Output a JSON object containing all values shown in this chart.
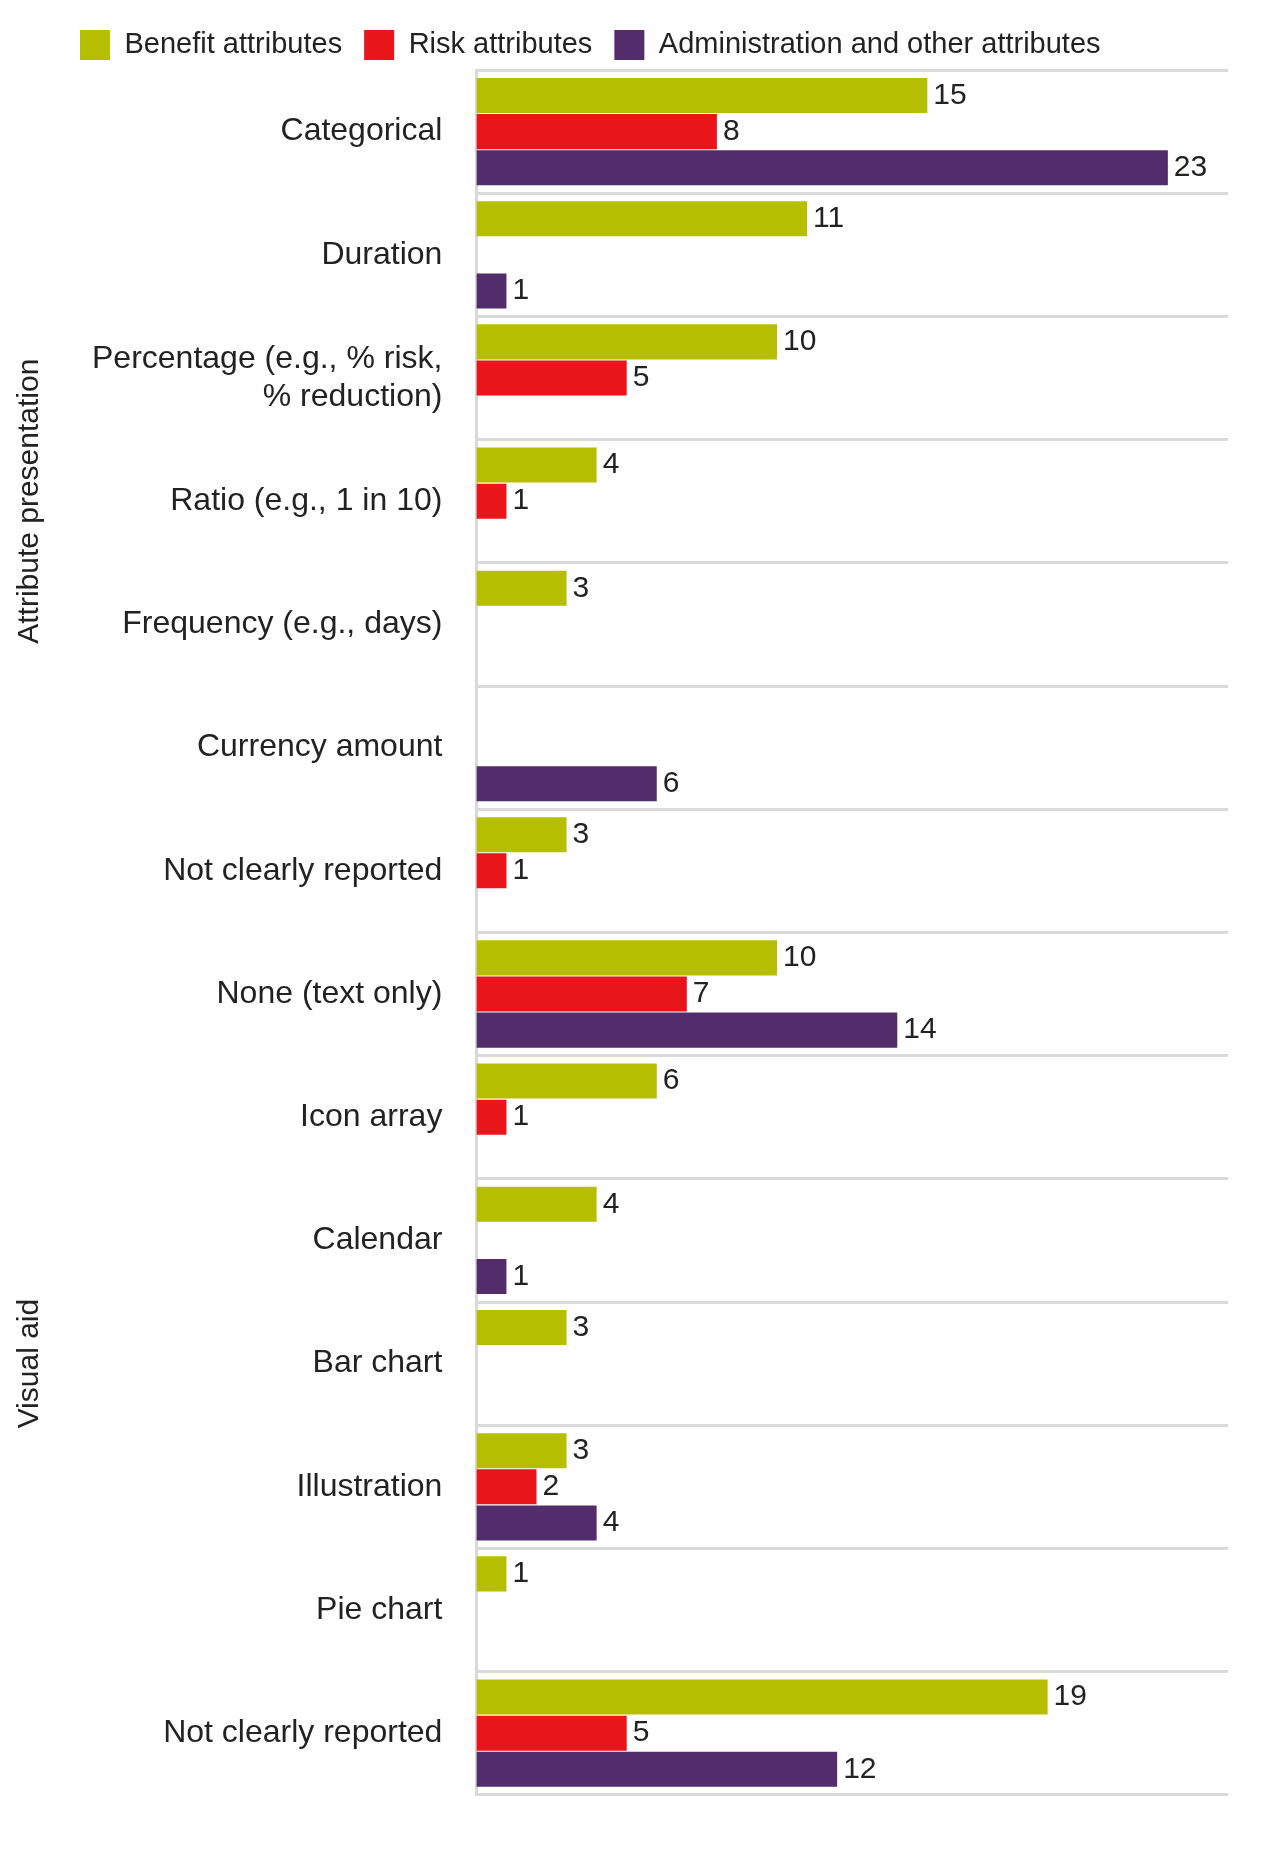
{
  "chart_data": {
    "type": "bar",
    "orientation": "horizontal",
    "data_labels": true,
    "grid": "y",
    "legend": "top left",
    "categories": [
      "Categorical",
      "Duration",
      "Percentage (e.g., % risk, % reduction)",
      "Ratio (e.g., 1 in 10)",
      "Frequency (e.g., days)",
      "Currency amount",
      "Not clearly reported",
      "None (text only)",
      "Icon array",
      "Calendar",
      "Bar chart",
      "Illustration",
      "Pie chart",
      "Not clearly reported"
    ],
    "annotations": [
      "Attribute presentation",
      "Visual aid"
    ],
    "series": [
      {
        "name": "Benefit attributes",
        "color": "#b5be00",
        "values": [
          15,
          11,
          10,
          4,
          3,
          null,
          3,
          10,
          6,
          4,
          3,
          3,
          1,
          19
        ]
      },
      {
        "name": "Risk attributes",
        "color": "#e8151b",
        "values": [
          8,
          null,
          5,
          1,
          null,
          null,
          1,
          7,
          1,
          null,
          null,
          2,
          null,
          5
        ]
      },
      {
        "name": "Administration and other attributes",
        "color": "#532c6b",
        "values": [
          23,
          1,
          null,
          null,
          null,
          6,
          null,
          14,
          null,
          1,
          null,
          4,
          null,
          12
        ]
      }
    ]
  }
}
